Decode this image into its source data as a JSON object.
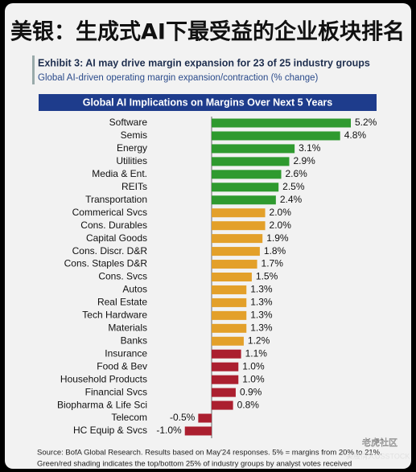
{
  "header": {
    "title": "美银：生成式AI下最受益的企业板块排名"
  },
  "chart_data": {
    "type": "hbar",
    "exhibit": "Exhibit 3: AI may drive margin expansion for 23 of 25 industry groups",
    "subtitle": "Global AI-driven operating margin expansion/contraction (% change)",
    "title": "Global AI Implications on Margins Over Next 5 Years",
    "categories": [
      "Software",
      "Semis",
      "Energy",
      "Utilities",
      "Media & Ent.",
      "REITs",
      "Transportation",
      "Commerical Svcs",
      "Cons. Durables",
      "Capital Goods",
      "Cons. Discr. D&R",
      "Cons. Staples D&R",
      "Cons. Svcs",
      "Autos",
      "Real Estate",
      "Tech Hardware",
      "Materials",
      "Banks",
      "Insurance",
      "Food & Bev",
      "Household Products",
      "Financial Svcs",
      "Biopharma & Life Sci",
      "Telecom",
      "HC Equip & Svcs"
    ],
    "values": [
      5.2,
      4.8,
      3.1,
      2.9,
      2.6,
      2.5,
      2.4,
      2.0,
      2.0,
      1.9,
      1.8,
      1.7,
      1.5,
      1.3,
      1.3,
      1.3,
      1.3,
      1.2,
      1.1,
      1.0,
      1.0,
      0.9,
      0.8,
      -0.5,
      -1.0
    ],
    "value_labels": [
      "5.2%",
      "4.8%",
      "3.1%",
      "2.9%",
      "2.6%",
      "2.5%",
      "2.4%",
      "2.0%",
      "2.0%",
      "1.9%",
      "1.8%",
      "1.7%",
      "1.5%",
      "1.3%",
      "1.3%",
      "1.3%",
      "1.3%",
      "1.2%",
      "1.1%",
      "1.0%",
      "1.0%",
      "0.9%",
      "0.8%",
      "-0.5%",
      "-1.0%"
    ],
    "colors": [
      "#2f9a2f",
      "#2f9a2f",
      "#2f9a2f",
      "#2f9a2f",
      "#2f9a2f",
      "#2f9a2f",
      "#2f9a2f",
      "#e3a02a",
      "#e3a02a",
      "#e3a02a",
      "#e3a02a",
      "#e3a02a",
      "#e3a02a",
      "#e3a02a",
      "#e3a02a",
      "#e3a02a",
      "#e3a02a",
      "#e3a02a",
      "#ab1f2f",
      "#ab1f2f",
      "#ab1f2f",
      "#ab1f2f",
      "#ab1f2f",
      "#ab1f2f",
      "#ab1f2f"
    ],
    "source": "Source: BofA Global Research. Results based on May'24 responses. 5% = margins from 20% to 21%.",
    "note": "Green/red shading indicates the top/bottom 25% of industry groups by analyst votes received"
  },
  "watermark": {
    "community": "老虎社区",
    "author": "美股情人USSTOCK"
  }
}
